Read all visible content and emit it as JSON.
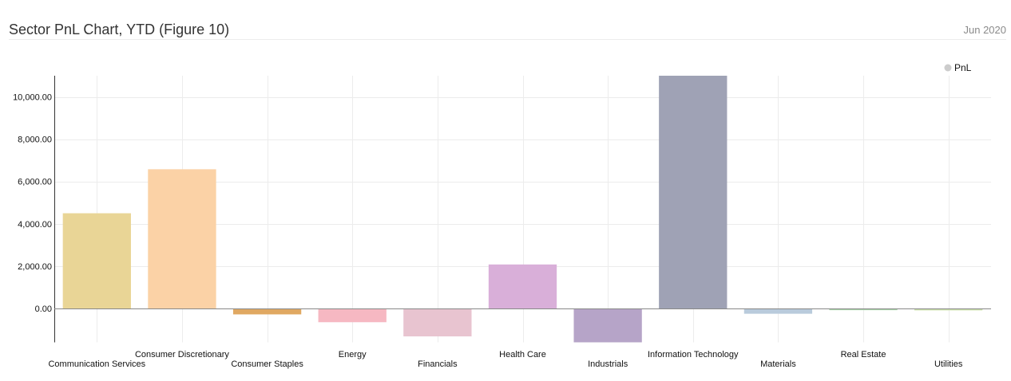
{
  "header": {
    "title": "Sector PnL Chart, YTD (Figure 10)",
    "date": "Jun 2020"
  },
  "chart_data": {
    "type": "bar",
    "ylim": [
      -1600,
      11000
    ],
    "yticks": [
      0,
      2000,
      4000,
      6000,
      8000,
      10000
    ],
    "ytick_labels": [
      "0.00",
      "2,000.00",
      "4,000.00",
      "6,000.00",
      "8,000.00",
      "10,000.00"
    ],
    "grid": true,
    "legend_position": "top-right",
    "categories": [
      "Communication Services",
      "Consumer Discretionary",
      "Consumer Staples",
      "Energy",
      "Financials",
      "Health Care",
      "Industrials",
      "Information Technology",
      "Materials",
      "Real Estate",
      "Utilities"
    ],
    "series": [
      {
        "name": "PnL",
        "values": [
          4500,
          6580,
          -280,
          -650,
          -1320,
          2080,
          -1600,
          11000,
          -250,
          -80,
          -90
        ]
      }
    ],
    "colors": [
      "#e9d596",
      "#fbd2a6",
      "#e0a862",
      "#f6b8c2",
      "#e8c4d0",
      "#d9afd9",
      "#b6a4c8",
      "#9fa2b5",
      "#b9cbdc",
      "#a8d2a8",
      "#c9dfa8"
    ],
    "legend_marker_color": "#cccccc"
  }
}
